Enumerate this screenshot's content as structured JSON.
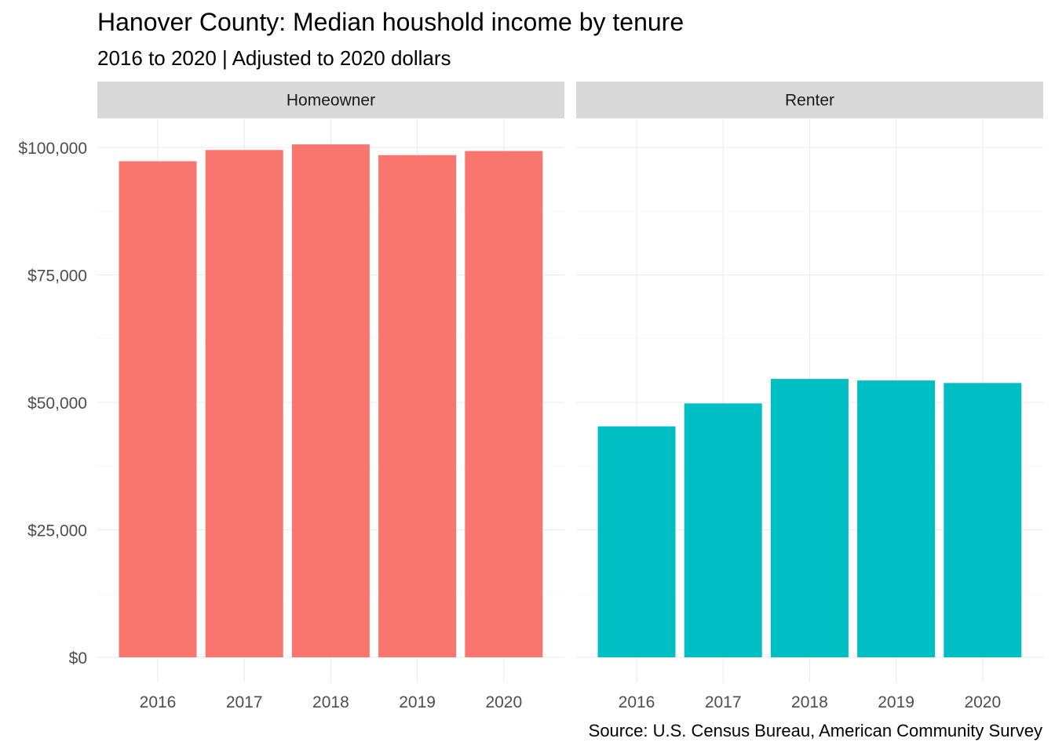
{
  "chart_data": {
    "type": "bar",
    "title": "Hanover County: Median houshold income by tenure",
    "subtitle": "2016 to 2020 | Adjusted to 2020 dollars",
    "caption": "Source: U.S. Census Bureau, American Community Survey",
    "xlabel": "",
    "ylabel": "",
    "ylim": [
      0,
      100000
    ],
    "y_ticks": [
      0,
      25000,
      50000,
      75000,
      100000
    ],
    "y_tick_labels": [
      "$0",
      "$25,000",
      "$50,000",
      "$75,000",
      "$100,000"
    ],
    "categories": [
      "2016",
      "2017",
      "2018",
      "2019",
      "2020"
    ],
    "facet_by": "tenure",
    "grid": true,
    "legend": "none",
    "panels": [
      {
        "name": "Homeowner",
        "color": "#F8766D",
        "values": [
          97300,
          99500,
          100600,
          98500,
          99300
        ]
      },
      {
        "name": "Renter",
        "color": "#00BFC4",
        "values": [
          45300,
          49800,
          54600,
          54300,
          53800
        ]
      }
    ]
  }
}
